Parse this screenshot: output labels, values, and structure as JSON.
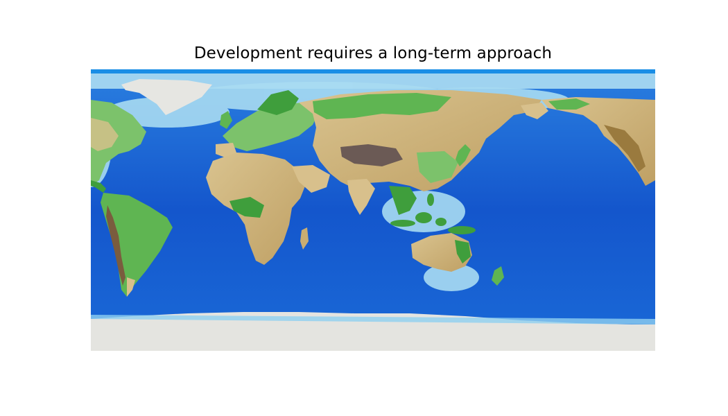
{
  "figure": {
    "title": "Development requires a long-term approach"
  },
  "map": {
    "projection": "equirectangular",
    "central_longitude": 90,
    "basemap": "topography and bathymetry relief",
    "colors": {
      "deep_ocean": "#0a3fae",
      "ocean": "#1565d8",
      "shallow_ocean": "#3fa6ea",
      "shelf": "#aedcf2",
      "lowland": "#3f9e3c",
      "plain": "#7cc26b",
      "upland": "#d8c08c",
      "highland": "#9a7a3e",
      "plateau": "#6b5a55",
      "ice": "#e4e4e0"
    }
  }
}
